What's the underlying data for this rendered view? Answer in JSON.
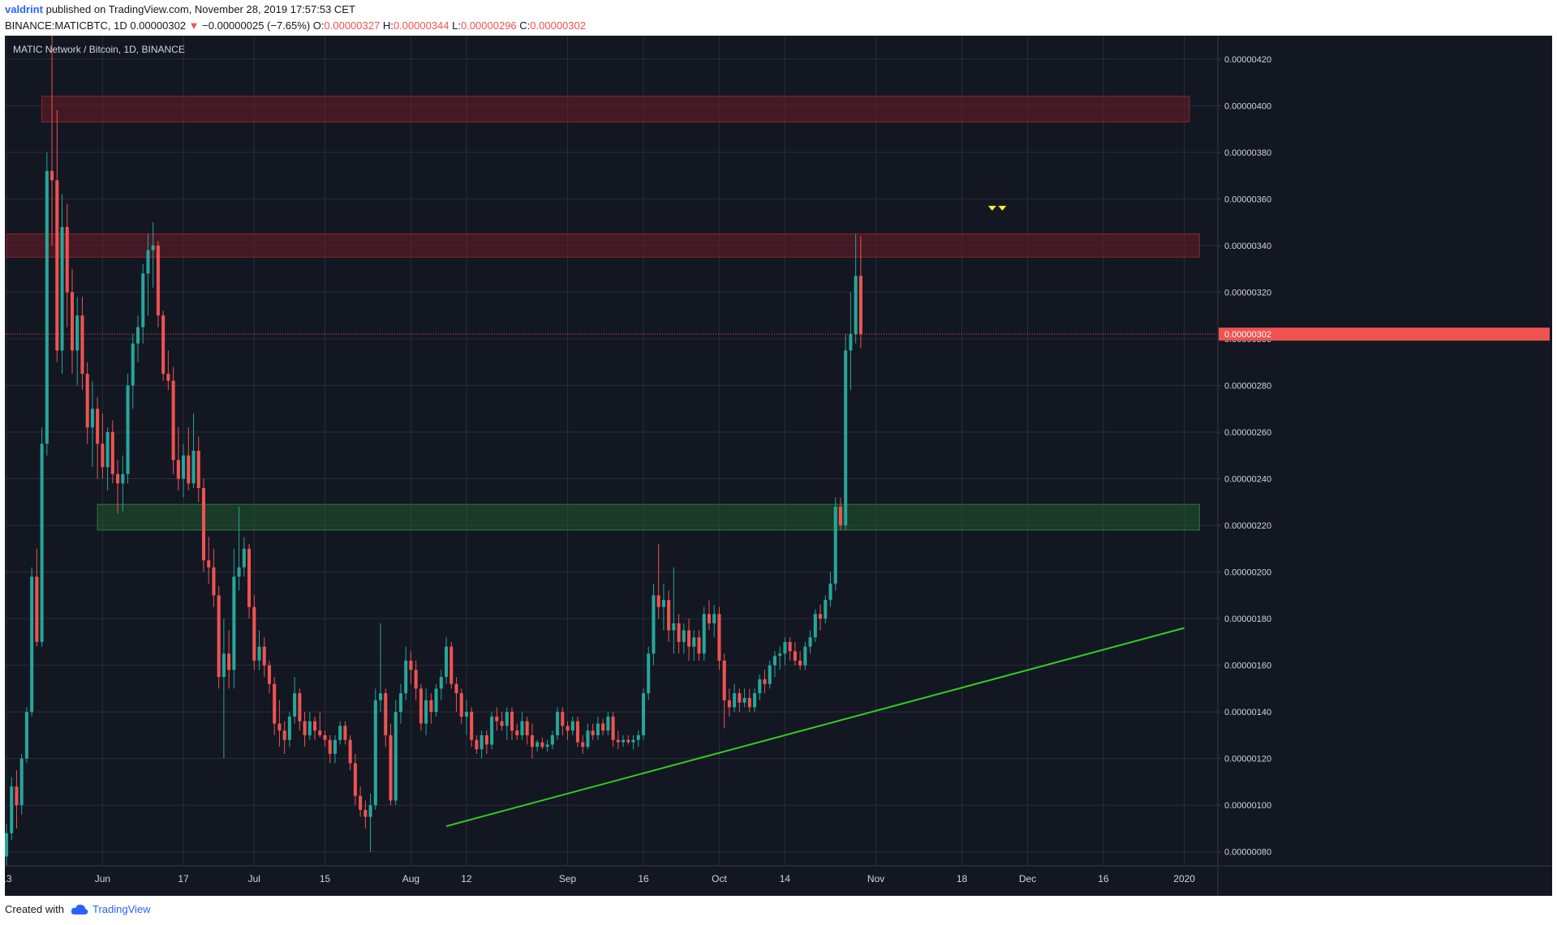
{
  "header": {
    "author": "valdrint",
    "published_text": "published on TradingView.com, November 28, 2019 17:57:53 CET",
    "symbol": "BINANCE:MATICBTC, 1D",
    "last": "0.00000302",
    "change": "−0.00000025 (−7.65%)",
    "o_label": "O:",
    "o_value": "0.00000327",
    "h_label": "H:",
    "h_value": "0.00000344",
    "l_label": "L:",
    "l_value": "0.00000296",
    "c_label": "C:",
    "c_value": "0.00000302"
  },
  "chart_title": "MATIC Network / Bitcoin, 1D, BINANCE",
  "footer": {
    "created_with": "Created with",
    "brand": "TradingView"
  },
  "colors": {
    "background": "#131722",
    "grid": "#2a2e39",
    "up": "#26a69a",
    "down": "#ef5350",
    "resistance_zone": "#6b1c27",
    "support_zone": "#1f5a2c",
    "trendline": "#33cc22",
    "marker": "#ffeb3b",
    "axis_text": "#d1d4dc"
  },
  "chart_data": {
    "type": "candlestick",
    "title": "MATIC Network / Bitcoin, 1D, BINANCE",
    "current_price_label": "0.00000302",
    "y_axis": {
      "unit": "BTC",
      "range": [
        7.4e-07,
        4.3e-06
      ],
      "ticks": [
        "0.00000080",
        "0.00000100",
        "0.00000120",
        "0.00000140",
        "0.00000160",
        "0.00000180",
        "0.00000200",
        "0.00000220",
        "0.00000240",
        "0.00000260",
        "0.00000280",
        "0.00000300",
        "0.00000320",
        "0.00000340",
        "0.00000360",
        "0.00000380",
        "0.00000400",
        "0.00000420"
      ]
    },
    "x_axis": {
      "ticks": [
        {
          "label": "13",
          "date": "2019-05-13"
        },
        {
          "label": "Jun",
          "date": "2019-06-01"
        },
        {
          "label": "17",
          "date": "2019-06-17"
        },
        {
          "label": "Jul",
          "date": "2019-07-01"
        },
        {
          "label": "15",
          "date": "2019-07-15"
        },
        {
          "label": "Aug",
          "date": "2019-08-01"
        },
        {
          "label": "12",
          "date": "2019-08-12"
        },
        {
          "label": "Sep",
          "date": "2019-09-01"
        },
        {
          "label": "16",
          "date": "2019-09-16"
        },
        {
          "label": "Oct",
          "date": "2019-10-01"
        },
        {
          "label": "14",
          "date": "2019-10-14"
        },
        {
          "label": "Nov",
          "date": "2019-11-01"
        },
        {
          "label": "18",
          "date": "2019-11-18"
        },
        {
          "label": "Dec",
          "date": "2019-12-01"
        },
        {
          "label": "16",
          "date": "2019-12-16"
        },
        {
          "label": "2020",
          "date": "2020-01-01"
        }
      ],
      "range": [
        "2019-05-13",
        "2020-01-07"
      ]
    },
    "first_candle_date": "2019-05-13",
    "candles_ohlc": [
      [
        7.8e-07,
        9.2e-07,
        7.4e-07,
        8.8e-07
      ],
      [
        8.8e-07,
        1.12e-06,
        8.5e-07,
        1.08e-06
      ],
      [
        1.08e-06,
        1.15e-06,
        9e-07,
        1e-06
      ],
      [
        1e-06,
        1.22e-06,
        9.6e-07,
        1.2e-06
      ],
      [
        1.2e-06,
        1.42e-06,
        1.18e-06,
        1.4e-06
      ],
      [
        1.4e-06,
        2.02e-06,
        1.38e-06,
        1.98e-06
      ],
      [
        1.98e-06,
        2.1e-06,
        1.68e-06,
        1.7e-06
      ],
      [
        1.7e-06,
        2.62e-06,
        1.68e-06,
        2.55e-06
      ],
      [
        2.55e-06,
        3.8e-06,
        2.5e-06,
        3.72e-06
      ],
      [
        3.72e-06,
        4.3e-06,
        3.4e-06,
        3.68e-06
      ],
      [
        3.68e-06,
        3.98e-06,
        2.9e-06,
        2.95e-06
      ],
      [
        2.95e-06,
        3.62e-06,
        2.85e-06,
        3.48e-06
      ],
      [
        3.48e-06,
        3.58e-06,
        3.05e-06,
        3.2e-06
      ],
      [
        3.2e-06,
        3.3e-06,
        2.85e-06,
        2.95e-06
      ],
      [
        2.95e-06,
        3.18e-06,
        2.8e-06,
        3.1e-06
      ],
      [
        3.1e-06,
        3.18e-06,
        2.78e-06,
        2.85e-06
      ],
      [
        2.85e-06,
        2.9e-06,
        2.55e-06,
        2.62e-06
      ],
      [
        2.62e-06,
        2.82e-06,
        2.45e-06,
        2.7e-06
      ],
      [
        2.7e-06,
        2.75e-06,
        2.4e-06,
        2.55e-06
      ],
      [
        2.55e-06,
        2.68e-06,
        2.4e-06,
        2.45e-06
      ],
      [
        2.45e-06,
        2.62e-06,
        2.35e-06,
        2.6e-06
      ],
      [
        2.6e-06,
        2.65e-06,
        2.38e-06,
        2.42e-06
      ],
      [
        2.42e-06,
        2.48e-06,
        2.25e-06,
        2.38e-06
      ],
      [
        2.38e-06,
        2.5e-06,
        2.26e-06,
        2.42e-06
      ],
      [
        2.42e-06,
        2.85e-06,
        2.38e-06,
        2.8e-06
      ],
      [
        2.8e-06,
        3.02e-06,
        2.7e-06,
        2.98e-06
      ],
      [
        2.98e-06,
        3.1e-06,
        2.9e-06,
        3.05e-06
      ],
      [
        3.05e-06,
        3.32e-06,
        2.98e-06,
        3.28e-06
      ],
      [
        3.28e-06,
        3.45e-06,
        3.1e-06,
        3.38e-06
      ],
      [
        3.38e-06,
        3.5e-06,
        3.22e-06,
        3.4e-06
      ],
      [
        3.4e-06,
        3.42e-06,
        3.05e-06,
        3.1e-06
      ],
      [
        3.1e-06,
        3.12e-06,
        2.82e-06,
        2.85e-06
      ],
      [
        2.85e-06,
        2.95e-06,
        2.78e-06,
        2.82e-06
      ],
      [
        2.82e-06,
        2.88e-06,
        2.42e-06,
        2.48e-06
      ],
      [
        2.48e-06,
        2.62e-06,
        2.35e-06,
        2.4e-06
      ],
      [
        2.4e-06,
        2.55e-06,
        2.32e-06,
        2.5e-06
      ],
      [
        2.5e-06,
        2.62e-06,
        2.35e-06,
        2.38e-06
      ],
      [
        2.38e-06,
        2.68e-06,
        2.36e-06,
        2.52e-06
      ],
      [
        2.52e-06,
        2.58e-06,
        2.3e-06,
        2.36e-06
      ],
      [
        2.36e-06,
        2.4e-06,
        2e-06,
        2.05e-06
      ],
      [
        2.05e-06,
        2.15e-06,
        1.95e-06,
        2.02e-06
      ],
      [
        2.02e-06,
        2.1e-06,
        1.85e-06,
        1.9e-06
      ],
      [
        1.9e-06,
        1.94e-06,
        1.5e-06,
        1.55e-06
      ],
      [
        1.55e-06,
        1.8e-06,
        1.2e-06,
        1.65e-06
      ],
      [
        1.65e-06,
        1.75e-06,
        1.5e-06,
        1.58e-06
      ],
      [
        1.58e-06,
        2.1e-06,
        1.5e-06,
        1.98e-06
      ],
      [
        1.98e-06,
        2.28e-06,
        1.92e-06,
        2.02e-06
      ],
      [
        2.02e-06,
        2.15e-06,
        1.98e-06,
        2.1e-06
      ],
      [
        2.1e-06,
        2.12e-06,
        1.8e-06,
        1.85e-06
      ],
      [
        1.85e-06,
        1.9e-06,
        1.58e-06,
        1.62e-06
      ],
      [
        1.62e-06,
        1.75e-06,
        1.58e-06,
        1.68e-06
      ],
      [
        1.68e-06,
        1.72e-06,
        1.55e-06,
        1.6e-06
      ],
      [
        1.6e-06,
        1.62e-06,
        1.48e-06,
        1.52e-06
      ],
      [
        1.52e-06,
        1.55e-06,
        1.3e-06,
        1.35e-06
      ],
      [
        1.35e-06,
        1.45e-06,
        1.25e-06,
        1.32e-06
      ],
      [
        1.32e-06,
        1.36e-06,
        1.22e-06,
        1.28e-06
      ],
      [
        1.28e-06,
        1.4e-06,
        1.25e-06,
        1.38e-06
      ],
      [
        1.38e-06,
        1.55e-06,
        1.35e-06,
        1.48e-06
      ],
      [
        1.48e-06,
        1.5e-06,
        1.32e-06,
        1.36e-06
      ],
      [
        1.36e-06,
        1.4e-06,
        1.25e-06,
        1.3e-06
      ],
      [
        1.3e-06,
        1.4e-06,
        1.28e-06,
        1.36e-06
      ],
      [
        1.36e-06,
        1.38e-06,
        1.28e-06,
        1.32e-06
      ],
      [
        1.32e-06,
        1.4e-06,
        1.29e-06,
        1.3e-06
      ],
      [
        1.3e-06,
        1.32e-06,
        1.25e-06,
        1.28e-06
      ],
      [
        1.28e-06,
        1.3e-06,
        1.18e-06,
        1.22e-06
      ],
      [
        1.22e-06,
        1.3e-06,
        1.18e-06,
        1.28e-06
      ],
      [
        1.28e-06,
        1.36e-06,
        1.26e-06,
        1.34e-06
      ],
      [
        1.34e-06,
        1.36e-06,
        1.26e-06,
        1.28e-06
      ],
      [
        1.28e-06,
        1.3e-06,
        1.15e-06,
        1.18e-06
      ],
      [
        1.18e-06,
        1.22e-06,
        1e-06,
        1.04e-06
      ],
      [
        1.04e-06,
        1.08e-06,
        9.5e-07,
        9.8e-07
      ],
      [
        9.8e-07,
        1.02e-06,
        9e-07,
        9.5e-07
      ],
      [
        9.5e-07,
        1.05e-06,
        8e-07,
        1e-06
      ],
      [
        1e-06,
        1.5e-06,
        9.8e-07,
        1.45e-06
      ],
      [
        1.45e-06,
        1.78e-06,
        1.4e-06,
        1.48e-06
      ],
      [
        1.48e-06,
        1.5e-06,
        1.25e-06,
        1.3e-06
      ],
      [
        1.3e-06,
        1.35e-06,
        1e-06,
        1.02e-06
      ],
      [
        1.02e-06,
        1.45e-06,
        1e-06,
        1.4e-06
      ],
      [
        1.4e-06,
        1.52e-06,
        1.35e-06,
        1.48e-06
      ],
      [
        1.48e-06,
        1.68e-06,
        1.45e-06,
        1.62e-06
      ],
      [
        1.62e-06,
        1.66e-06,
        1.52e-06,
        1.58e-06
      ],
      [
        1.58e-06,
        1.62e-06,
        1.45e-06,
        1.5e-06
      ],
      [
        1.5e-06,
        1.52e-06,
        1.32e-06,
        1.35e-06
      ],
      [
        1.35e-06,
        1.5e-06,
        1.3e-06,
        1.45e-06
      ],
      [
        1.45e-06,
        1.48e-06,
        1.35e-06,
        1.4e-06
      ],
      [
        1.4e-06,
        1.52e-06,
        1.38e-06,
        1.5e-06
      ],
      [
        1.5e-06,
        1.58e-06,
        1.45e-06,
        1.55e-06
      ],
      [
        1.55e-06,
        1.72e-06,
        1.52e-06,
        1.68e-06
      ],
      [
        1.68e-06,
        1.7e-06,
        1.5e-06,
        1.52e-06
      ],
      [
        1.52e-06,
        1.55e-06,
        1.4e-06,
        1.48e-06
      ],
      [
        1.48e-06,
        1.5e-06,
        1.35e-06,
        1.38e-06
      ],
      [
        1.38e-06,
        1.45e-06,
        1.3e-06,
        1.4e-06
      ],
      [
        1.4e-06,
        1.42e-06,
        1.25e-06,
        1.28e-06
      ],
      [
        1.28e-06,
        1.3e-06,
        1.22e-06,
        1.24e-06
      ],
      [
        1.24e-06,
        1.32e-06,
        1.2e-06,
        1.3e-06
      ],
      [
        1.3e-06,
        1.32e-06,
        1.22e-06,
        1.26e-06
      ],
      [
        1.26e-06,
        1.4e-06,
        1.24e-06,
        1.38e-06
      ],
      [
        1.38e-06,
        1.42e-06,
        1.32e-06,
        1.36e-06
      ],
      [
        1.36e-06,
        1.4e-06,
        1.32e-06,
        1.34e-06
      ],
      [
        1.34e-06,
        1.42e-06,
        1.28e-06,
        1.4e-06
      ],
      [
        1.4e-06,
        1.42e-06,
        1.28e-06,
        1.32e-06
      ],
      [
        1.32e-06,
        1.35e-06,
        1.28e-06,
        1.3e-06
      ],
      [
        1.3e-06,
        1.4e-06,
        1.28e-06,
        1.36e-06
      ],
      [
        1.36e-06,
        1.38e-06,
        1.26e-06,
        1.3e-06
      ],
      [
        1.3e-06,
        1.35e-06,
        1.2e-06,
        1.25e-06
      ],
      [
        1.25e-06,
        1.28e-06,
        1.23e-06,
        1.27e-06
      ],
      [
        1.27e-06,
        1.29e-06,
        1.24e-06,
        1.25e-06
      ],
      [
        1.25e-06,
        1.28e-06,
        1.23e-06,
        1.26e-06
      ],
      [
        1.26e-06,
        1.32e-06,
        1.24e-06,
        1.3e-06
      ],
      [
        1.3e-06,
        1.42e-06,
        1.28e-06,
        1.4e-06
      ],
      [
        1.4e-06,
        1.42e-06,
        1.3e-06,
        1.34e-06
      ],
      [
        1.34e-06,
        1.36e-06,
        1.28e-06,
        1.32e-06
      ],
      [
        1.32e-06,
        1.38e-06,
        1.3e-06,
        1.36e-06
      ],
      [
        1.36e-06,
        1.38e-06,
        1.25e-06,
        1.27e-06
      ],
      [
        1.27e-06,
        1.3e-06,
        1.22e-06,
        1.25e-06
      ],
      [
        1.25e-06,
        1.35e-06,
        1.24e-06,
        1.32e-06
      ],
      [
        1.32e-06,
        1.35e-06,
        1.28e-06,
        1.3e-06
      ],
      [
        1.3e-06,
        1.38e-06,
        1.28e-06,
        1.35e-06
      ],
      [
        1.35e-06,
        1.37e-06,
        1.3e-06,
        1.32e-06
      ],
      [
        1.32e-06,
        1.4e-06,
        1.3e-06,
        1.38e-06
      ],
      [
        1.38e-06,
        1.4e-06,
        1.25e-06,
        1.28e-06
      ],
      [
        1.28e-06,
        1.32e-06,
        1.24e-06,
        1.27e-06
      ],
      [
        1.27e-06,
        1.3e-06,
        1.25e-06,
        1.28e-06
      ],
      [
        1.28e-06,
        1.3e-06,
        1.26e-06,
        1.27e-06
      ],
      [
        1.27e-06,
        1.3e-06,
        1.24e-06,
        1.28e-06
      ],
      [
        1.28e-06,
        1.32e-06,
        1.25e-06,
        1.3e-06
      ],
      [
        1.3e-06,
        1.5e-06,
        1.28e-06,
        1.48e-06
      ],
      [
        1.48e-06,
        1.68e-06,
        1.45e-06,
        1.65e-06
      ],
      [
        1.65e-06,
        1.95e-06,
        1.6e-06,
        1.9e-06
      ],
      [
        1.9e-06,
        2.12e-06,
        1.8e-06,
        1.85e-06
      ],
      [
        1.85e-06,
        1.95e-06,
        1.75e-06,
        1.88e-06
      ],
      [
        1.88e-06,
        1.92e-06,
        1.7e-06,
        1.75e-06
      ],
      [
        1.75e-06,
        2.02e-06,
        1.65e-06,
        1.78e-06
      ],
      [
        1.78e-06,
        1.82e-06,
        1.65e-06,
        1.7e-06
      ],
      [
        1.7e-06,
        1.78e-06,
        1.65e-06,
        1.75e-06
      ],
      [
        1.75e-06,
        1.8e-06,
        1.62e-06,
        1.68e-06
      ],
      [
        1.68e-06,
        1.75e-06,
        1.62e-06,
        1.72e-06
      ],
      [
        1.72e-06,
        1.75e-06,
        1.62e-06,
        1.65e-06
      ],
      [
        1.65e-06,
        1.85e-06,
        1.62e-06,
        1.82e-06
      ],
      [
        1.82e-06,
        1.88e-06,
        1.75e-06,
        1.78e-06
      ],
      [
        1.78e-06,
        1.86e-06,
        1.72e-06,
        1.82e-06
      ],
      [
        1.82e-06,
        1.85e-06,
        1.58e-06,
        1.62e-06
      ],
      [
        1.62e-06,
        1.65e-06,
        1.33e-06,
        1.45e-06
      ],
      [
        1.45e-06,
        1.5e-06,
        1.38e-06,
        1.42e-06
      ],
      [
        1.42e-06,
        1.52e-06,
        1.4e-06,
        1.48e-06
      ],
      [
        1.48e-06,
        1.5e-06,
        1.4e-06,
        1.44e-06
      ],
      [
        1.44e-06,
        1.5e-06,
        1.42e-06,
        1.46e-06
      ],
      [
        1.46e-06,
        1.5e-06,
        1.4e-06,
        1.42e-06
      ],
      [
        1.42e-06,
        1.5e-06,
        1.4e-06,
        1.48e-06
      ],
      [
        1.48e-06,
        1.56e-06,
        1.45e-06,
        1.54e-06
      ],
      [
        1.54e-06,
        1.58e-06,
        1.48e-06,
        1.52e-06
      ],
      [
        1.52e-06,
        1.62e-06,
        1.5e-06,
        1.6e-06
      ],
      [
        1.6e-06,
        1.66e-06,
        1.55e-06,
        1.64e-06
      ],
      [
        1.64e-06,
        1.68e-06,
        1.58e-06,
        1.65e-06
      ],
      [
        1.65e-06,
        1.72e-06,
        1.6e-06,
        1.7e-06
      ],
      [
        1.7e-06,
        1.72e-06,
        1.62e-06,
        1.66e-06
      ],
      [
        1.66e-06,
        1.7e-06,
        1.6e-06,
        1.62e-06
      ],
      [
        1.62e-06,
        1.66e-06,
        1.58e-06,
        1.6e-06
      ],
      [
        1.6e-06,
        1.7e-06,
        1.58e-06,
        1.68e-06
      ],
      [
        1.68e-06,
        1.75e-06,
        1.65e-06,
        1.72e-06
      ],
      [
        1.72e-06,
        1.84e-06,
        1.7e-06,
        1.82e-06
      ],
      [
        1.82e-06,
        1.86e-06,
        1.75e-06,
        1.8e-06
      ],
      [
        1.8e-06,
        1.9e-06,
        1.78e-06,
        1.88e-06
      ],
      [
        1.88e-06,
        2e-06,
        1.85e-06,
        1.95e-06
      ],
      [
        1.95e-06,
        2.32e-06,
        1.92e-06,
        2.28e-06
      ],
      [
        2.28e-06,
        2.32e-06,
        2.18e-06,
        2.2e-06
      ],
      [
        2.2e-06,
        3.02e-06,
        2.18e-06,
        2.95e-06
      ],
      [
        2.95e-06,
        3.2e-06,
        2.78e-06,
        3.02e-06
      ],
      [
        3.02e-06,
        3.45e-06,
        2.98e-06,
        3.27e-06
      ],
      [
        3.27e-06,
        3.44e-06,
        2.96e-06,
        3.02e-06
      ]
    ],
    "resistance_zones": [
      {
        "from": "2019-05-20",
        "to": "2020-01-02",
        "low": 3.93e-06,
        "high": 4.04e-06
      },
      {
        "from": "2019-05-13",
        "to": "2020-01-04",
        "low": 3.35e-06,
        "high": 3.45e-06
      }
    ],
    "support_zones": [
      {
        "from": "2019-05-31",
        "to": "2020-01-04",
        "low": 2.18e-06,
        "high": 2.29e-06
      }
    ],
    "trendline": {
      "from": [
        "2019-08-08",
        9.1e-07
      ],
      "to": [
        "2020-01-01",
        1.76e-06
      ]
    },
    "markers": [
      {
        "date": "2019-11-24",
        "price": 3.56e-06,
        "shape": "triangle-down"
      },
      {
        "date": "2019-11-26",
        "price": 3.56e-06,
        "shape": "triangle-down"
      }
    ]
  }
}
